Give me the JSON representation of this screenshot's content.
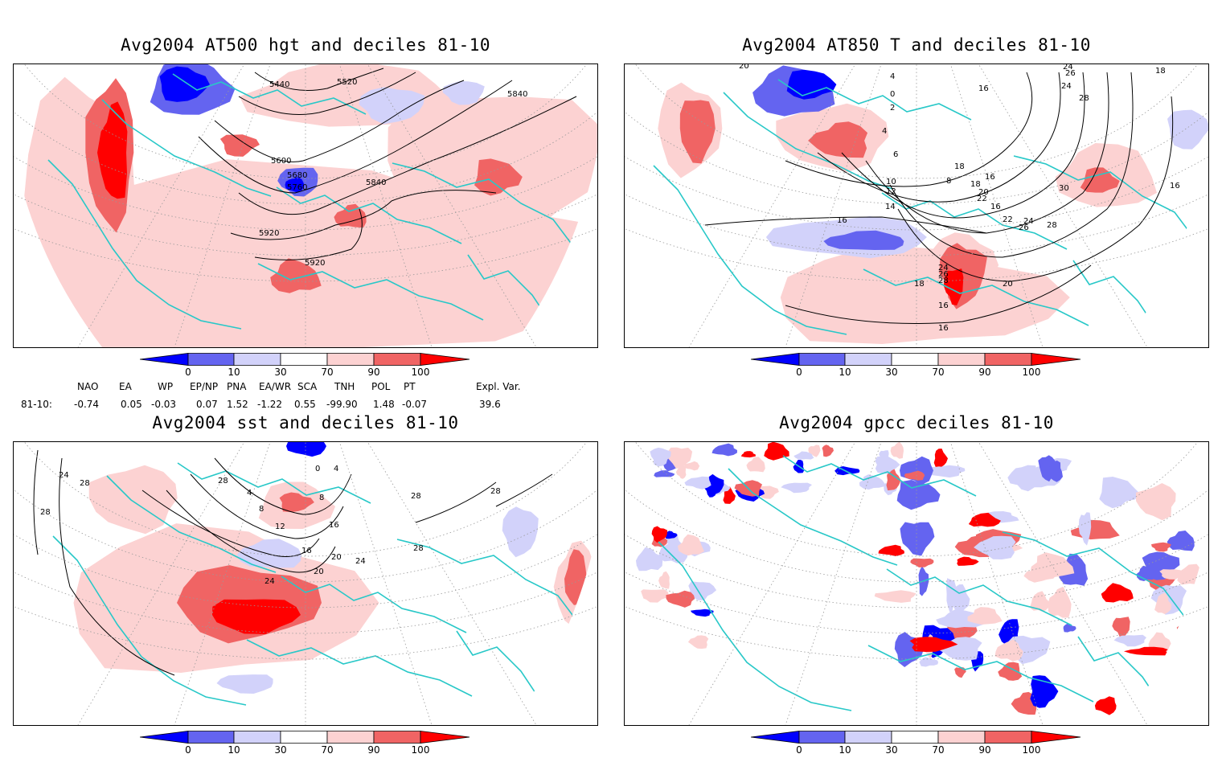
{
  "panels": [
    {
      "id": "p1",
      "title": "Avg2004 AT500 hgt and deciles 81-10",
      "contour_labels": [
        "5440",
        "5520",
        "5840",
        "5600",
        "5680",
        "5760",
        "5840",
        "5920",
        "5920"
      ]
    },
    {
      "id": "p2",
      "title": "Avg2004 AT850 T and deciles 81-10",
      "contour_labels": [
        "20",
        "24",
        "18",
        "4",
        "0",
        "2",
        "16",
        "24",
        "26",
        "28",
        "6",
        "4",
        "18",
        "8",
        "10",
        "12",
        "14",
        "16",
        "18",
        "20",
        "22",
        "16",
        "30",
        "16",
        "16",
        "28",
        "24",
        "26",
        "22",
        "24",
        "26",
        "28",
        "20",
        "16",
        "16",
        "18"
      ]
    },
    {
      "id": "p3",
      "title": "Avg2004 sst and deciles 81-10",
      "contour_labels": [
        "28",
        "24",
        "28",
        "28",
        "24",
        "28",
        "4",
        "8",
        "12",
        "16",
        "20",
        "20",
        "24",
        "24",
        "28",
        "28",
        "0",
        "4",
        "8",
        "16"
      ]
    },
    {
      "id": "p4",
      "title": "Avg2004 gpcc deciles 81-10",
      "contour_labels": []
    }
  ],
  "colorbar": {
    "labels": [
      "0",
      "10",
      "30",
      "70",
      "90",
      "100"
    ],
    "colors": {
      "deep_blue": "#0000ff",
      "mid_blue": "#6464f0",
      "light_blue": "#d2d2fa",
      "white": "#ffffff",
      "light_red": "#fcd2d2",
      "mid_red": "#f06464",
      "deep_red": "#ff0000"
    }
  },
  "teleconnections": {
    "headers": [
      "NAO",
      "EA",
      "WP",
      "EP/NP",
      "PNA",
      "EA/WR",
      "SCA",
      "TNH",
      "POL",
      "PT",
      "Expl. Var."
    ],
    "row_label": "81-10:",
    "values": [
      "-0.74",
      "0.05",
      "-0.03",
      "0.07",
      "1.52",
      "-1.22",
      "0.55",
      "-99.90",
      "1.48",
      "-0.07",
      "39.6"
    ]
  },
  "map_colors": {
    "coast": "#28c8c8",
    "grid": "#9a9a9a",
    "contour": "#000000"
  }
}
